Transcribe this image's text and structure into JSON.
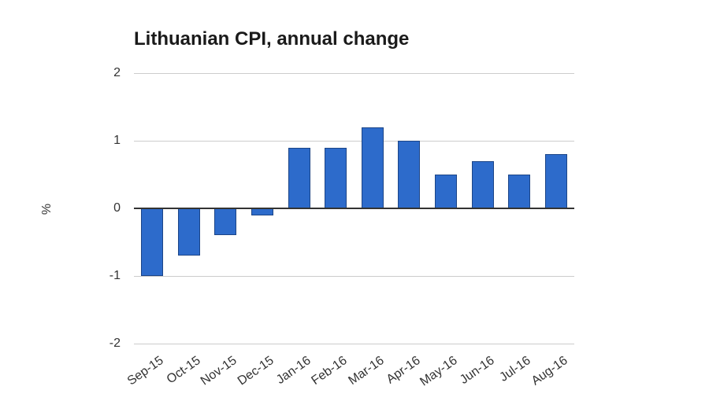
{
  "chart_data": {
    "type": "bar",
    "title": "Lithuanian CPI, annual change",
    "ylabel": "%",
    "xlabel": "",
    "categories": [
      "Sep-15",
      "Oct-15",
      "Nov-15",
      "Dec-15",
      "Jan-16",
      "Feb-16",
      "Mar-16",
      "Apr-16",
      "May-16",
      "Jun-16",
      "Jul-16",
      "Aug-16"
    ],
    "values": [
      -1.0,
      -0.7,
      -0.4,
      -0.1,
      0.9,
      0.9,
      1.2,
      1.0,
      0.5,
      0.7,
      0.5,
      0.8
    ],
    "ylim": [
      -2,
      2
    ],
    "yticks": [
      2,
      1,
      0,
      -1,
      -2
    ],
    "grid": true,
    "legend": "none",
    "colors": {
      "bar_fill": "#2d6bcb",
      "bar_stroke": "#1c4587",
      "gridline": "#cccccc",
      "baseline": "#333333",
      "axis_text": "#333333",
      "title_text": "#1a1a1a",
      "background": "#ffffff"
    }
  }
}
